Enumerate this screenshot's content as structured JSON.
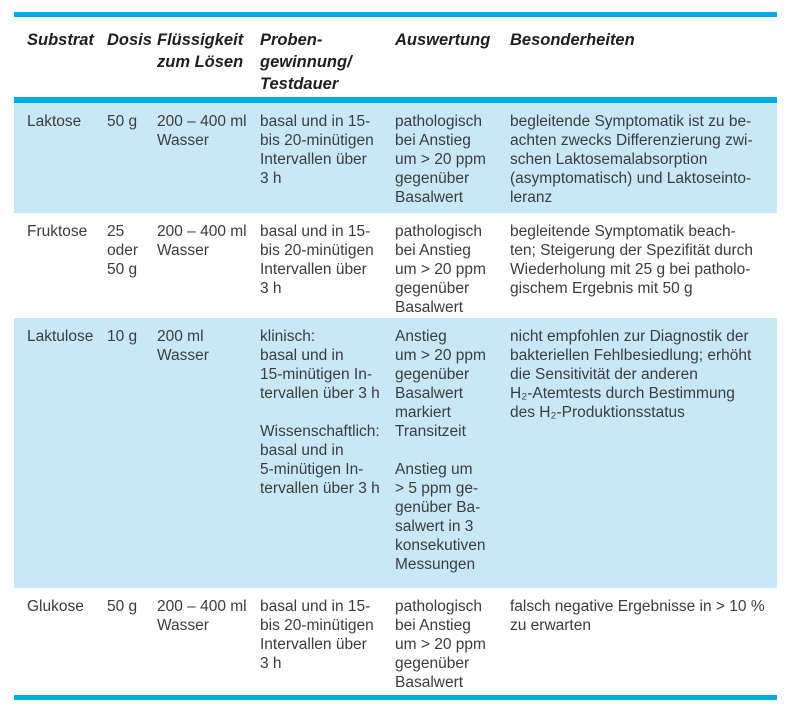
{
  "colors": {
    "accent": "#00ade2",
    "row_highlight": "#c9e8f7",
    "text": "#3c3c3c",
    "header_text": "#1f1f1f"
  },
  "table": {
    "headers": [
      "Substrat",
      "Dosis",
      "Flüssigkeit\nzum Lösen",
      "Proben-\ngewinnung/\nTestdauer",
      "Auswertung",
      "Besonderheiten"
    ],
    "rows": [
      {
        "highlight": true,
        "cells": [
          "Laktose",
          "50 g",
          "200 – 400 ml\nWasser",
          "basal und in 15-\nbis 20-minütigen\nIntervallen über\n3 h",
          "pathologisch\nbei Anstieg\num > 20 ppm\ngegenüber\nBasalwert",
          "begleitende Symptomatik ist zu be-\nachten zwecks Differenzierung zwi-\nschen Laktosemalabsorption\n(asymptomatisch) und Laktoseinto-\nleranz"
        ]
      },
      {
        "highlight": false,
        "cells": [
          "Fruktose",
          "25\noder\n50 g",
          "200 – 400 ml\nWasser",
          "basal und in 15-\nbis 20-minütigen\nIntervallen über\n3 h",
          "pathologisch\nbei Anstieg\num > 20 ppm\ngegenüber\nBasalwert",
          "begleitende Symptomatik beach-\nten; Steigerung der Spezifität durch\nWiederholung mit 25 g bei patholo-\ngischem Ergebnis mit 50 g"
        ]
      },
      {
        "highlight": true,
        "cells": [
          "Laktulose",
          "10 g",
          "200 ml\nWasser",
          "klinisch:\nbasal und in\n15-minütigen In-\ntervallen über 3 h\n\nWissenschaftlich:\nbasal und in\n5-minütigen In-\ntervallen über 3 h",
          "Anstieg\num > 20 ppm\ngegenüber\nBasalwert\nmarkiert\nTransitzeit\n\nAnstieg um\n> 5 ppm ge-\ngenüber Ba-\nsalwert in 3\nkonsekutiven\nMessungen",
          "nicht empfohlen zur Diagnostik der\nbakteriellen Fehlbesiedlung; erhöht\ndie Sensitivität der anderen\nH₂-Atemtests durch Bestimmung\ndes H₂-Produktionsstatus"
        ]
      },
      {
        "highlight": false,
        "cells": [
          "Glukose",
          "50 g",
          "200 – 400 ml\nWasser",
          "basal und in 15-\nbis 20-minütigen\nIntervallen über\n3 h",
          "pathologisch\nbei Anstieg\num > 20 ppm\ngegenüber\nBasalwert",
          "falsch negative Ergebnisse in > 10 %\nzu erwarten"
        ]
      }
    ]
  }
}
